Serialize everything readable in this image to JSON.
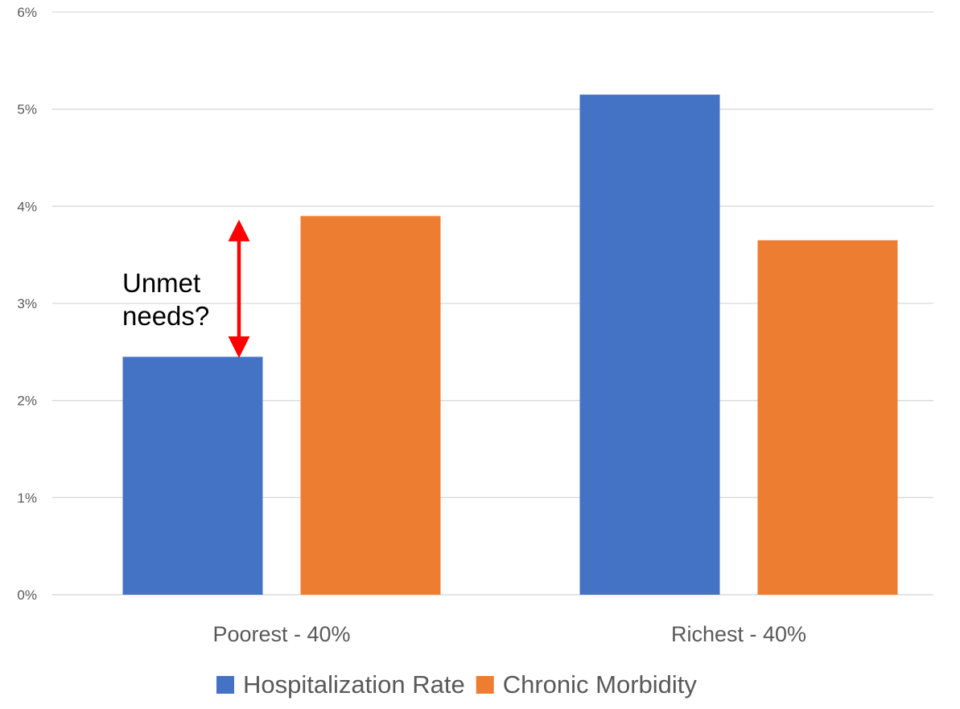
{
  "chart_data": {
    "type": "bar",
    "categories": [
      "Poorest - 40%",
      "Richest - 40%"
    ],
    "series": [
      {
        "name": "Hospitalization Rate",
        "color": "#4472C4",
        "values": [
          2.45,
          5.15
        ]
      },
      {
        "name": "Chronic Morbidity",
        "color": "#ED7D31",
        "values": [
          3.9,
          3.65
        ]
      }
    ],
    "ylim": [
      0,
      6
    ],
    "y_ticks": [
      0,
      1,
      2,
      3,
      4,
      5,
      6
    ],
    "y_tick_labels": [
      "0%",
      "1%",
      "2%",
      "3%",
      "4%",
      "5%",
      "6%"
    ],
    "grid": true,
    "legend": "bottom",
    "annotation": {
      "lines": [
        "Unmet",
        "needs?"
      ],
      "arrow_color": "#FF0000",
      "from_value": 2.45,
      "to_value": 3.9,
      "category_index": 0
    }
  }
}
